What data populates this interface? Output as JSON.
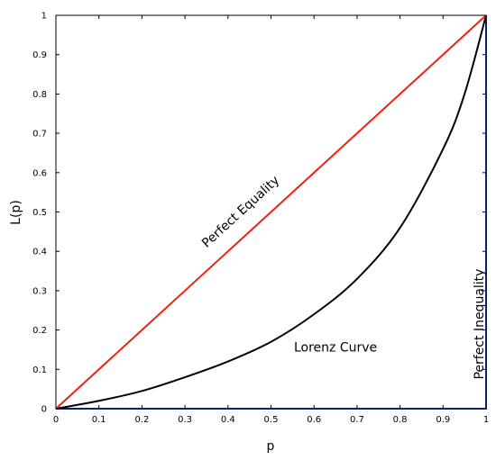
{
  "chart_data": {
    "type": "line",
    "title": "",
    "xlabel": "p",
    "ylabel": "L(p)",
    "xlim": [
      0,
      1
    ],
    "ylim": [
      0,
      1
    ],
    "xticks": [
      "0",
      "0.1",
      "0.2",
      "0.3",
      "0.4",
      "0.5",
      "0.6",
      "0.7",
      "0.8",
      "0.9",
      "1"
    ],
    "yticks": [
      "0",
      "0.1",
      "0.2",
      "0.3",
      "0.4",
      "0.5",
      "0.6",
      "0.7",
      "0.8",
      "0.9",
      "1"
    ],
    "grid": false,
    "legend": "none",
    "series": [
      {
        "name": "Perfect Equality",
        "color": "#ee2211",
        "x": [
          0,
          1
        ],
        "y": [
          0,
          1
        ]
      },
      {
        "name": "Lorenz Curve",
        "color": "#000000",
        "x": [
          0,
          0.1,
          0.2,
          0.3,
          0.4,
          0.5,
          0.6,
          0.7,
          0.8,
          0.9,
          0.95,
          1
        ],
        "y": [
          0,
          0.02,
          0.045,
          0.08,
          0.12,
          0.17,
          0.24,
          0.33,
          0.46,
          0.66,
          0.8,
          1
        ]
      },
      {
        "name": "Perfect Inequality",
        "color": "#1144dd",
        "x": [
          0,
          1,
          1
        ],
        "y": [
          0,
          0,
          1
        ]
      }
    ],
    "annotations": [
      {
        "text": "Perfect Equality",
        "x": 0.43,
        "y": 0.5,
        "angle": -42.4
      },
      {
        "text": "Lorenz Curve",
        "x": 0.65,
        "y": 0.155,
        "angle": 0
      },
      {
        "text": "Perfect Inequality",
        "x": 0.985,
        "y": 0.215,
        "angle": -90
      }
    ]
  }
}
